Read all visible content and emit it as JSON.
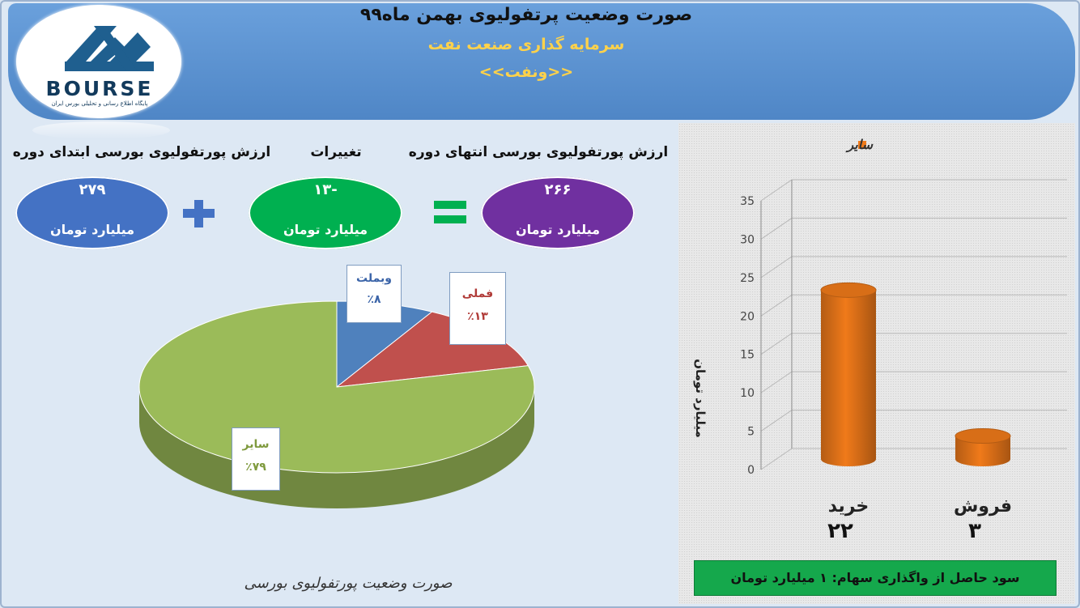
{
  "header": {
    "title": "صورت وضعیت پرتفولیوی بهمن ماه۹۹",
    "subtitle": "سرمایه گذاری صنعت نفت",
    "ticker": "<<ونفت>>"
  },
  "logo": {
    "word": "BOURSE",
    "tagline": "پایگاه اطلاع رسانی و تحلیلی بورس ایران"
  },
  "summary": {
    "start": {
      "label": "ارزش پورتفولیوی بورسی ابتدای دوره",
      "value": "۲۷۹",
      "unit": "میلیارد تومان",
      "color": "#4472c4"
    },
    "change": {
      "label": "تغییرات",
      "value": "-۱۳",
      "unit": "میلیارد تومان",
      "color": "#00b050"
    },
    "end": {
      "label": "ارزش پورتفولیوی بورسی انتهای دوره",
      "value": "۲۶۶",
      "unit": "میلیارد تومان",
      "color": "#7030a0"
    }
  },
  "pie_caption": "صورت وضعیت پورتفولیوی بورسی",
  "profit_note": "سود حاصل از واگذاری سهام: ۱ میلیارد تومان",
  "chart_data": [
    {
      "type": "pie",
      "slices": [
        {
          "label": "وبملت",
          "value": 8,
          "display": "٪۸",
          "color": "#4f81bd"
        },
        {
          "label": "فملی",
          "value": 13,
          "display": "٪۱۳",
          "color": "#c0504d"
        },
        {
          "label": "سایر",
          "value": 79,
          "display": "٪۷۹",
          "color": "#9bbb59"
        }
      ]
    },
    {
      "type": "bar",
      "categories": [
        "خرید",
        "فروش"
      ],
      "category_values": [
        "۲۲",
        "۳"
      ],
      "series": [
        {
          "name": "سایر",
          "values": [
            22,
            3
          ],
          "color": "#f07a1a"
        }
      ],
      "ylabel": "میلیارد تومان",
      "ylim": [
        0,
        35
      ],
      "yticks": [
        0,
        5,
        10,
        15,
        20,
        25,
        30,
        35
      ],
      "grid": true,
      "legend": "top"
    }
  ]
}
